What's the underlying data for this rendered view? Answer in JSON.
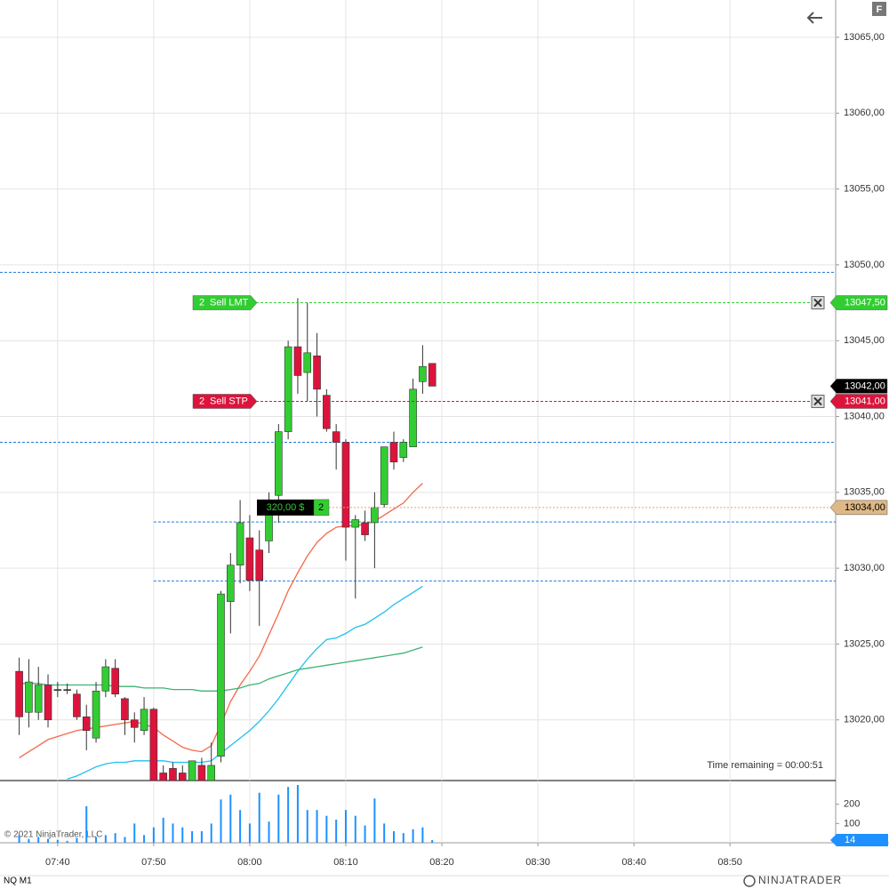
{
  "chart_data": {
    "type": "candlestick",
    "x": [
      "07:36",
      "07:37",
      "07:38",
      "07:39",
      "07:40",
      "07:41",
      "07:42",
      "07:43",
      "07:44",
      "07:45",
      "07:46",
      "07:47",
      "07:48",
      "07:49",
      "07:50",
      "07:51",
      "07:52",
      "07:53",
      "07:54",
      "07:55",
      "07:56",
      "07:57",
      "07:58",
      "07:59",
      "08:00",
      "08:01",
      "08:02",
      "08:03",
      "08:04",
      "08:05",
      "08:06",
      "08:07",
      "08:08",
      "08:09",
      "08:10",
      "08:11",
      "08:12",
      "08:13",
      "08:14",
      "08:15",
      "08:16",
      "08:17",
      "08:18",
      "08:19"
    ],
    "open": [
      13023.2,
      13020.5,
      13020.5,
      13022.3,
      13022.0,
      13022.0,
      13021.7,
      13020.2,
      13018.8,
      13021.9,
      13023.4,
      13021.4,
      13020.0,
      13019.3,
      13020.7,
      13016.5,
      13016.8,
      13016.5,
      13016.0,
      13017.0,
      13016.0,
      13017.6,
      13027.8,
      13030.2,
      13032.0,
      13031.2,
      13031.8,
      13034.8,
      13039.0,
      13044.6,
      13042.9,
      13044.0,
      13041.4,
      13039.0,
      13038.3,
      13032.7,
      13033.0,
      13033.0,
      13034.2,
      13038.3,
      13037.3,
      13038.0,
      13042.3,
      13043.5
    ],
    "high": [
      13024.1,
      13024.0,
      13023.5,
      13023.0,
      13022.5,
      13022.4,
      13022.0,
      13021.0,
      13022.5,
      13024.0,
      13024.0,
      13021.5,
      13020.5,
      13021.5,
      13020.8,
      13017.0,
      13017.2,
      13017.0,
      13017.3,
      13017.5,
      13018.5,
      13028.5,
      13031.0,
      13034.5,
      13033.5,
      13032.5,
      13035.0,
      13039.5,
      13045.0,
      13047.8,
      13047.5,
      13045.5,
      13041.8,
      13039.5,
      13038.5,
      13033.5,
      13033.8,
      13035.0,
      13038.0,
      13039.0,
      13038.5,
      13042.5,
      13044.7,
      13043.5
    ],
    "low": [
      13019.0,
      13019.5,
      13020.0,
      13019.5,
      13021.5,
      13021.7,
      13020.0,
      13018.0,
      13018.5,
      13021.5,
      13021.5,
      13019.0,
      13018.5,
      13019.0,
      13016.0,
      13016.0,
      13016.0,
      13016.0,
      13016.0,
      13016.0,
      13016.0,
      13017.2,
      13025.7,
      13029.0,
      13028.5,
      13026.2,
      13031.0,
      13033.0,
      13038.5,
      13041.5,
      13041.0,
      13040.0,
      13039.0,
      13036.5,
      13030.5,
      13028.0,
      13031.8,
      13030.0,
      13034.0,
      13036.5,
      13037.0,
      13038.0,
      13041.5,
      13042.0
    ],
    "close": [
      13020.2,
      13022.5,
      13022.3,
      13020.0,
      13022.0,
      13022.0,
      13020.2,
      13019.3,
      13021.9,
      13023.5,
      13021.7,
      13020.0,
      13019.5,
      13020.7,
      13016.0,
      13016.0,
      13016.0,
      13016.0,
      13017.3,
      13016.0,
      13017.0,
      13028.3,
      13030.2,
      13033.0,
      13029.2,
      13029.2,
      13033.6,
      13039.0,
      13044.6,
      13042.7,
      13044.2,
      13041.8,
      13039.2,
      13038.3,
      13032.7,
      13033.2,
      13032.2,
      13034.0,
      13038.0,
      13037.0,
      13038.3,
      13041.8,
      13043.3,
      13042.0
    ],
    "up_color": "#32cd32",
    "down_color": "#dc143c",
    "series": [
      {
        "color": "#f4694a",
        "values": [
          13017.5,
          13017.9,
          13018.3,
          13018.7,
          13018.9,
          13019.1,
          13019.3,
          13019.4,
          13019.5,
          13019.6,
          13019.7,
          13019.8,
          13019.9,
          13019.7,
          13019.5,
          13019.0,
          13018.6,
          13018.2,
          13018.0,
          13017.9,
          13018.3,
          13019.7,
          13021.2,
          13022.3,
          13023.2,
          13024.2,
          13025.6,
          13027.0,
          13028.5,
          13029.7,
          13030.8,
          13031.7,
          13032.3,
          13032.7,
          13032.8,
          13032.8,
          13032.9,
          13033.1,
          13033.5,
          13033.9,
          13034.3,
          13035.0,
          13035.6,
          null
        ]
      },
      {
        "color": "#1ec0f0",
        "values": [
          null,
          null,
          null,
          null,
          null,
          13016.1,
          13016.3,
          13016.6,
          13016.9,
          13017.1,
          13017.2,
          13017.2,
          13017.3,
          13017.3,
          13017.3,
          13017.3,
          13017.2,
          13017.2,
          13017.2,
          13017.2,
          13017.3,
          13017.8,
          13018.3,
          13018.8,
          13019.3,
          13019.9,
          13020.6,
          13021.4,
          13022.3,
          13023.2,
          13024.0,
          13024.7,
          13025.3,
          13025.4,
          13025.7,
          13026.1,
          13026.3,
          13026.7,
          13027.1,
          13027.6,
          13028.0,
          13028.4,
          13028.8,
          null
        ]
      },
      {
        "color": "#3cb371",
        "values": [
          13022.4,
          13022.4,
          13022.4,
          13022.3,
          13022.3,
          13022.3,
          13022.3,
          13022.3,
          13022.3,
          13022.3,
          13022.2,
          13022.2,
          13022.2,
          13022.1,
          13022.1,
          13022.1,
          13022.0,
          13022.0,
          13022.0,
          13021.9,
          13021.9,
          13021.9,
          13022.0,
          13022.1,
          13022.3,
          13022.4,
          13022.7,
          13022.9,
          13023.1,
          13023.3,
          13023.4,
          13023.5,
          13023.6,
          13023.7,
          13023.8,
          13023.9,
          13024.0,
          13024.1,
          13024.2,
          13024.3,
          13024.4,
          13024.6,
          13024.8,
          null
        ]
      }
    ],
    "ylim": [
      13016.0,
      13067.46
    ],
    "yticks": [
      {
        "value": 13020,
        "label": "13020,00"
      },
      {
        "value": 13025,
        "label": "13025,00"
      },
      {
        "value": 13030,
        "label": "13030,00"
      },
      {
        "value": 13035,
        "label": "13035,00"
      },
      {
        "value": 13040,
        "label": "13040,00"
      },
      {
        "value": 13045,
        "label": "13045,00"
      },
      {
        "value": 13050,
        "label": "13050,00"
      },
      {
        "value": 13055,
        "label": "13055,00"
      },
      {
        "value": 13060,
        "label": "13060,00"
      },
      {
        "value": 13065,
        "label": "13065,00"
      }
    ],
    "xlim": [
      "07:34",
      "09:01"
    ],
    "xticks": [
      "07:40",
      "07:50",
      "08:00",
      "08:10",
      "08:20",
      "08:30",
      "08:40",
      "08:50"
    ],
    "grid": true,
    "volume": {
      "color": "#1e90ff",
      "ylim": [
        0,
        314
      ],
      "yticks": [
        100,
        200
      ],
      "values": [
        40,
        20,
        30,
        20,
        15,
        10,
        25,
        190,
        30,
        40,
        50,
        30,
        100,
        40,
        80,
        130,
        100,
        80,
        60,
        60,
        100,
        225,
        250,
        170,
        100,
        260,
        110,
        250,
        290,
        300,
        170,
        170,
        140,
        120,
        170,
        140,
        90,
        230,
        100,
        60,
        50,
        70,
        80,
        14
      ]
    },
    "levels": [
      {
        "value": 13049.5
      },
      {
        "value": 13038.3
      },
      {
        "value": 13033.05,
        "from": "07:50"
      },
      {
        "value": 13029.15,
        "from": "07:50"
      }
    ],
    "orders": [
      {
        "quantity": 2,
        "label": "Sell LMT",
        "color": "#32cd32",
        "price": {
          "value": 13047.5,
          "label": "13047,50"
        }
      },
      {
        "quantity": 2,
        "label": "Sell STP",
        "color": "#dc143c",
        "price": {
          "value": 13041,
          "label": "13041,00"
        }
      }
    ],
    "position": {
      "quantity": 2,
      "pnl": 320,
      "pnl_label": "320,00 $",
      "price": {
        "value": 13034,
        "label": "13034,00"
      }
    },
    "last_price": {
      "value": 13042,
      "label": "13042,00"
    },
    "time_remaining": "Time remaining = 00:00:51"
  },
  "footer": {
    "copyright": "© 2021 NinjaTrader, LLC",
    "instrument": "NQ M1",
    "brand": "NINJATRADER"
  },
  "toolbar": {
    "button": "F"
  }
}
